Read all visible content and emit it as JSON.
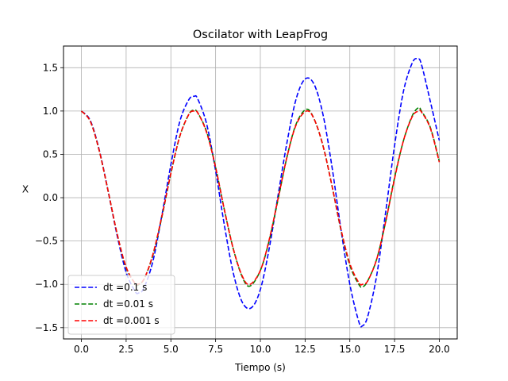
{
  "chart_data": {
    "type": "line",
    "title": "Oscilator with LeapFrog",
    "xlabel": "Tiempo (s)",
    "ylabel": "X",
    "xlim": [
      -1.0,
      21.0
    ],
    "ylim": [
      -1.63,
      1.75
    ],
    "xticks": [
      0.0,
      2.5,
      5.0,
      7.5,
      10.0,
      12.5,
      15.0,
      17.5,
      20.0
    ],
    "xtick_labels": [
      "0.0",
      "2.5",
      "5.0",
      "7.5",
      "10.0",
      "12.5",
      "15.0",
      "17.5",
      "20.0"
    ],
    "yticks": [
      -1.5,
      -1.0,
      -0.5,
      0.0,
      0.5,
      1.0,
      1.5
    ],
    "ytick_labels": [
      "−1.5",
      "−1.0",
      "−0.5",
      "0.0",
      "0.5",
      "1.0",
      "1.5"
    ],
    "grid": true,
    "legend_position": "lower-left",
    "series": [
      {
        "name": "dt =0.1 s",
        "color": "#0000ff",
        "dash": "dashed",
        "x": [
          0,
          0.5,
          1,
          1.5,
          2,
          2.5,
          3,
          3.2,
          3.5,
          4,
          4.5,
          5,
          5.5,
          6,
          6.3,
          6.5,
          7,
          7.5,
          8,
          8.5,
          9,
          9.5,
          10,
          10.5,
          11,
          11.5,
          12,
          12.5,
          13,
          13.5,
          14,
          14.5,
          15,
          15.5,
          15.7,
          16,
          16.5,
          17,
          17.5,
          18,
          18.5,
          18.8,
          19,
          19.5,
          20
        ],
        "y": [
          1.0,
          0.89,
          0.55,
          0.07,
          -0.44,
          -0.86,
          -1.08,
          -1.1,
          -1.04,
          -0.73,
          -0.2,
          0.38,
          0.88,
          1.13,
          1.17,
          1.14,
          0.85,
          0.31,
          -0.33,
          -0.88,
          -1.21,
          -1.27,
          -1.06,
          -0.58,
          0.04,
          0.65,
          1.14,
          1.37,
          1.31,
          0.96,
          0.36,
          -0.36,
          -1.0,
          -1.43,
          -1.48,
          -1.37,
          -0.9,
          -0.17,
          0.6,
          1.23,
          1.56,
          1.6,
          1.54,
          1.11,
          0.66
        ]
      },
      {
        "name": "dt =0.01 s",
        "color": "#008000",
        "dash": "dashed",
        "x": [
          0,
          0.5,
          1,
          1.5,
          2,
          2.5,
          3,
          3.14,
          3.5,
          4,
          4.5,
          5,
          5.5,
          6,
          6.28,
          6.5,
          7,
          7.5,
          8,
          8.5,
          9,
          9.42,
          10,
          10.5,
          11,
          11.5,
          12,
          12.57,
          13,
          13.5,
          14,
          14.5,
          15,
          15.5,
          15.71,
          16,
          16.5,
          17,
          17.5,
          18,
          18.5,
          18.85,
          19,
          19.5,
          20
        ],
        "y": [
          1.0,
          0.88,
          0.54,
          0.07,
          -0.42,
          -0.81,
          -0.99,
          -1.01,
          -0.94,
          -0.66,
          -0.22,
          0.28,
          0.71,
          0.96,
          1.01,
          0.98,
          0.76,
          0.35,
          -0.15,
          -0.6,
          -0.92,
          -1.02,
          -0.84,
          -0.49,
          -0.01,
          0.48,
          0.85,
          1.02,
          0.91,
          0.6,
          0.14,
          -0.37,
          -0.78,
          -1.0,
          -1.03,
          -0.96,
          -0.71,
          -0.28,
          0.23,
          0.66,
          0.95,
          1.04,
          1.0,
          0.81,
          0.42
        ]
      },
      {
        "name": "dt =0.001 s",
        "color": "#ff0000",
        "dash": "dashed",
        "x": [
          0,
          0.5,
          1,
          1.5,
          2,
          2.5,
          3,
          3.14,
          3.5,
          4,
          4.5,
          5,
          5.5,
          6,
          6.28,
          6.5,
          7,
          7.5,
          8,
          8.5,
          9,
          9.42,
          10,
          10.5,
          11,
          11.5,
          12,
          12.57,
          13,
          13.5,
          14,
          14.5,
          15,
          15.5,
          15.71,
          16,
          16.5,
          17,
          17.5,
          18,
          18.5,
          18.85,
          19,
          19.5,
          20
        ],
        "y": [
          1.0,
          0.88,
          0.54,
          0.07,
          -0.42,
          -0.8,
          -0.99,
          -1.0,
          -0.94,
          -0.65,
          -0.21,
          0.28,
          0.71,
          0.96,
          1.0,
          0.98,
          0.75,
          0.35,
          -0.15,
          -0.6,
          -0.91,
          -1.0,
          -0.84,
          -0.48,
          0.0,
          0.48,
          0.84,
          1.0,
          0.91,
          0.6,
          0.14,
          -0.36,
          -0.76,
          -0.98,
          -1.0,
          -0.96,
          -0.71,
          -0.28,
          0.22,
          0.66,
          0.94,
          1.0,
          0.99,
          0.8,
          0.41
        ]
      }
    ]
  }
}
